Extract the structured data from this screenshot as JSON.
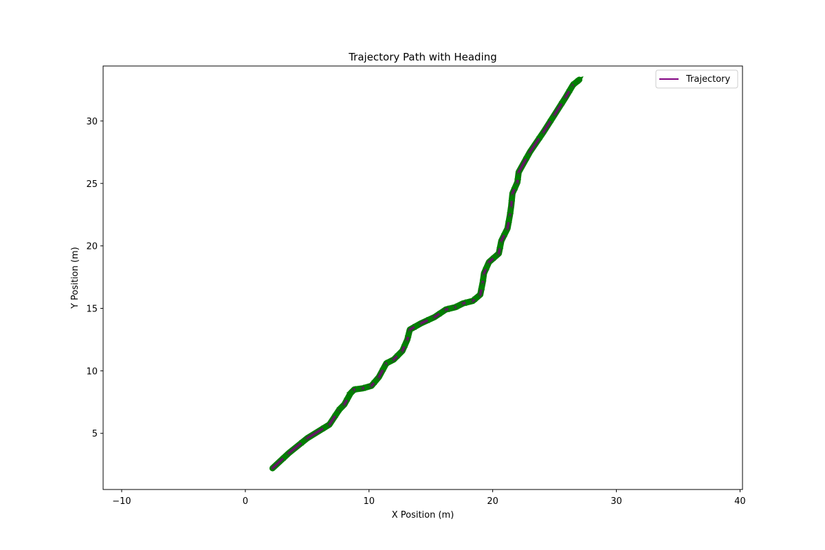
{
  "chart_data": {
    "type": "line",
    "title": "Trajectory Path with Heading",
    "xlabel": "X Position (m)",
    "ylabel": "Y Position (m)",
    "xlim": [
      -11.5,
      40.2
    ],
    "ylim": [
      0.5,
      34.4
    ],
    "xticks": [
      -10,
      0,
      10,
      20,
      30,
      40
    ],
    "yticks": [
      5,
      10,
      15,
      20,
      25,
      30
    ],
    "xtick_labels": [
      "−10",
      "0",
      "10",
      "20",
      "30",
      "40"
    ],
    "ytick_labels": [
      "5",
      "10",
      "15",
      "20",
      "25",
      "30"
    ],
    "grid": false,
    "legend": {
      "position": "top-right",
      "entries": [
        "Trajectory"
      ]
    },
    "series": [
      {
        "name": "Trajectory",
        "color": "#800080",
        "heading_arrow_color": "#008000",
        "x": [
          2.2,
          3.5,
          5.0,
          6.8,
          7.6,
          8.0,
          8.5,
          8.8,
          9.5,
          10.2,
          10.8,
          11.4,
          12.0,
          12.7,
          13.1,
          13.3,
          14.2,
          15.3,
          16.2,
          17.0,
          17.6,
          18.4,
          19.0,
          19.2,
          19.3,
          19.7,
          20.5,
          20.7,
          21.2,
          21.4,
          21.5,
          21.6,
          22.0,
          22.1,
          23.0,
          24.1,
          25.0,
          25.9,
          26.5,
          27.0
        ],
        "y": [
          2.2,
          3.4,
          4.6,
          5.7,
          6.9,
          7.3,
          8.2,
          8.5,
          8.6,
          8.8,
          9.5,
          10.6,
          10.9,
          11.6,
          12.5,
          13.3,
          13.8,
          14.3,
          14.9,
          15.1,
          15.4,
          15.6,
          16.1,
          17.1,
          17.8,
          18.7,
          19.4,
          20.4,
          21.4,
          22.5,
          23.2,
          24.2,
          25.1,
          25.9,
          27.5,
          29.1,
          30.5,
          31.9,
          32.9,
          33.3
        ]
      }
    ]
  }
}
